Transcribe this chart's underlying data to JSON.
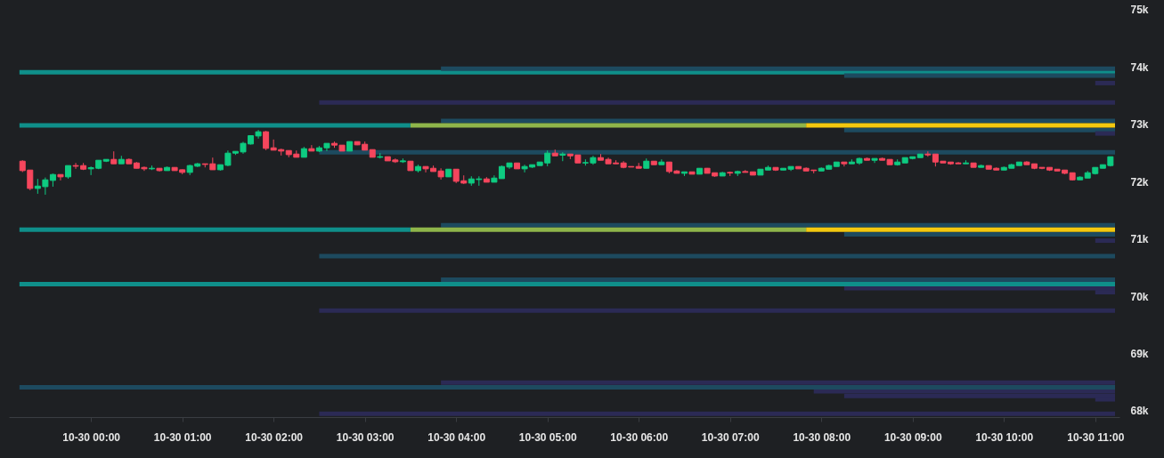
{
  "chart_data": {
    "type": "candlestick",
    "xlim": [
      "--10-29T23:09",
      "--10-30T11:13"
    ],
    "xticks": [
      {
        "value": "--10-30T00:00",
        "label": "10-30 00:00"
      },
      {
        "value": "--10-30T01:00",
        "label": "10-30 01:00"
      },
      {
        "value": "--10-30T02:00",
        "label": "10-30 02:00"
      },
      {
        "value": "--10-30T03:00",
        "label": "10-30 03:00"
      },
      {
        "value": "--10-30T04:00",
        "label": "10-30 04:00"
      },
      {
        "value": "--10-30T05:00",
        "label": "10-30 05:00"
      },
      {
        "value": "--10-30T06:00",
        "label": "10-30 06:00"
      },
      {
        "value": "--10-30T07:00",
        "label": "10-30 07:00"
      },
      {
        "value": "--10-30T08:00",
        "label": "10-30 08:00"
      },
      {
        "value": "--10-30T09:00",
        "label": "10-30 09:00"
      },
      {
        "value": "--10-30T10:00",
        "label": "10-30 10:00"
      },
      {
        "value": "--10-30T11:00",
        "label": "10-30 11:00"
      }
    ],
    "ylim": [
      67890,
      75170
    ],
    "yticks": [
      {
        "value": 68000,
        "label": "68k"
      },
      {
        "value": 69000,
        "label": "69k"
      },
      {
        "value": 70000,
        "label": "70k"
      },
      {
        "value": 71000,
        "label": "71k"
      },
      {
        "value": 72000,
        "label": "72k"
      },
      {
        "value": 73000,
        "label": "73k"
      },
      {
        "value": 74000,
        "label": "74k"
      },
      {
        "value": 75000,
        "label": "75k"
      }
    ],
    "series": [
      {
        "type": "line",
        "color": "#0f8f8a",
        "x": [
          "--10-29T23:13",
          "--10-30T11:13"
        ],
        "values": [
          73910,
          73910
        ]
      },
      {
        "type": "line",
        "color": "#1d4a5f",
        "x": [
          "--10-30T03:50",
          "--10-30T11:13"
        ],
        "values": [
          73970,
          73970
        ]
      },
      {
        "type": "line",
        "color": "#1d4a5f",
        "x": [
          "--10-30T08:15",
          "--10-30T11:13"
        ],
        "values": [
          73850,
          73850
        ]
      },
      {
        "type": "line",
        "color": "#2b2a55",
        "x": [
          "--10-30T11:00",
          "--10-30T11:13"
        ],
        "values": [
          73720,
          73720
        ]
      },
      {
        "type": "line",
        "color": "#2b2a55",
        "x": [
          "--10-30T02:30",
          "--10-30T11:13"
        ],
        "values": [
          73380,
          73380
        ]
      },
      {
        "type": "line",
        "color": "#1d4a5f",
        "x": [
          "--10-30T03:50",
          "--10-30T11:13"
        ],
        "values": [
          73060,
          73060
        ]
      },
      {
        "type": "line",
        "color": "#1d4a5f",
        "x": [
          "--10-30T08:15",
          "--10-30T11:13"
        ],
        "values": [
          72900,
          72900
        ]
      },
      {
        "type": "line",
        "color": "#2b2a55",
        "x": [
          "--10-30T11:00",
          "--10-30T11:13"
        ],
        "values": [
          72840,
          72840
        ]
      },
      {
        "type": "line",
        "color": "#0f8f8a",
        "x": [
          "--10-29T23:13",
          "--10-30T03:30"
        ],
        "values": [
          72980,
          72980
        ]
      },
      {
        "type": "line",
        "color": "#8fb54a",
        "x": [
          "--10-30T03:30",
          "--10-30T07:50"
        ],
        "values": [
          72980,
          72980
        ]
      },
      {
        "type": "line",
        "color": "#f3c80f",
        "x": [
          "--10-30T07:50",
          "--10-30T11:13"
        ],
        "values": [
          72980,
          72980
        ]
      },
      {
        "type": "line",
        "color": "#1d4a5f",
        "x": [
          "--10-30T02:30",
          "--10-30T11:13"
        ],
        "values": [
          72510,
          72510
        ]
      },
      {
        "type": "line",
        "color": "#1d4a5f",
        "x": [
          "--10-30T03:50",
          "--10-30T11:13"
        ],
        "values": [
          71240,
          71240
        ]
      },
      {
        "type": "line",
        "color": "#1d4a5f",
        "x": [
          "--10-30T08:15",
          "--10-30T11:13"
        ],
        "values": [
          71080,
          71080
        ]
      },
      {
        "type": "line",
        "color": "#2b2a55",
        "x": [
          "--10-30T11:00",
          "--10-30T11:13"
        ],
        "values": [
          70970,
          70970
        ]
      },
      {
        "type": "line",
        "color": "#0f8f8a",
        "x": [
          "--10-29T23:13",
          "--10-30T03:30"
        ],
        "values": [
          71160,
          71160
        ]
      },
      {
        "type": "line",
        "color": "#8fb54a",
        "x": [
          "--10-30T03:30",
          "--10-30T07:50"
        ],
        "values": [
          71160,
          71160
        ]
      },
      {
        "type": "line",
        "color": "#f3c80f",
        "x": [
          "--10-30T07:50",
          "--10-30T11:13"
        ],
        "values": [
          71160,
          71160
        ]
      },
      {
        "type": "line",
        "color": "#1d4a5f",
        "x": [
          "--10-30T02:30",
          "--10-30T11:13"
        ],
        "values": [
          70700,
          70700
        ]
      },
      {
        "type": "line",
        "color": "#1d4a5f",
        "x": [
          "--10-30T03:50",
          "--10-30T11:13"
        ],
        "values": [
          70290,
          70290
        ]
      },
      {
        "type": "line",
        "color": "#2b2a55",
        "x": [
          "--10-30T08:15",
          "--10-30T11:13"
        ],
        "values": [
          70140,
          70140
        ]
      },
      {
        "type": "line",
        "color": "#2b2a55",
        "x": [
          "--10-30T11:00",
          "--10-30T11:13"
        ],
        "values": [
          70070,
          70070
        ]
      },
      {
        "type": "line",
        "color": "#0f8f8a",
        "x": [
          "--10-29T23:13",
          "--10-30T11:13"
        ],
        "values": [
          70210,
          70210
        ]
      },
      {
        "type": "line",
        "color": "#2b2a55",
        "x": [
          "--10-30T02:30",
          "--10-30T11:13"
        ],
        "values": [
          69750,
          69750
        ]
      },
      {
        "type": "line",
        "color": "#2b2a55",
        "x": [
          "--10-30T03:50",
          "--10-30T11:13"
        ],
        "values": [
          68490,
          68490
        ]
      },
      {
        "type": "line",
        "color": "#2b2a55",
        "x": [
          "--10-30T07:55",
          "--10-30T11:13"
        ],
        "values": [
          68340,
          68340
        ]
      },
      {
        "type": "line",
        "color": "#2b2a55",
        "x": [
          "--10-30T08:15",
          "--10-30T11:13"
        ],
        "values": [
          68260,
          68260
        ]
      },
      {
        "type": "line",
        "color": "#2b2a55",
        "x": [
          "--10-30T11:00",
          "--10-30T11:13"
        ],
        "values": [
          68200,
          68200
        ]
      },
      {
        "type": "line",
        "color": "#1d4a5f",
        "x": [
          "--10-29T23:13",
          "--10-30T11:13"
        ],
        "values": [
          68410,
          68410
        ]
      },
      {
        "type": "line",
        "color": "#2b2a55",
        "x": [
          "--10-30T02:30",
          "--10-30T11:13"
        ],
        "values": [
          67950,
          67950
        ]
      },
      {
        "x": [
          "--10-29T23:15",
          "--10-29T23:20",
          "--10-29T23:25",
          "--10-29T23:30",
          "--10-29T23:35",
          "--10-29T23:40",
          "--10-29T23:45",
          "--10-29T23:50",
          "--10-29T23:55",
          "--10-30T00:00",
          "--10-30T00:05",
          "--10-30T00:10",
          "--10-30T00:15",
          "--10-30T00:20",
          "--10-30T00:25",
          "--10-30T00:30",
          "--10-30T00:35",
          "--10-30T00:40",
          "--10-30T00:45",
          "--10-30T00:50",
          "--10-30T00:55",
          "--10-30T01:00",
          "--10-30T01:05",
          "--10-30T01:10",
          "--10-30T01:15",
          "--10-30T01:20",
          "--10-30T01:25",
          "--10-30T01:30",
          "--10-30T01:35",
          "--10-30T01:40",
          "--10-30T01:45",
          "--10-30T01:50",
          "--10-30T01:55",
          "--10-30T02:00",
          "--10-30T02:05",
          "--10-30T02:10",
          "--10-30T02:15",
          "--10-30T02:20",
          "--10-30T02:25",
          "--10-30T02:30",
          "--10-30T02:35",
          "--10-30T02:40",
          "--10-30T02:45",
          "--10-30T02:50",
          "--10-30T02:55",
          "--10-30T03:00",
          "--10-30T03:05",
          "--10-30T03:10",
          "--10-30T03:15",
          "--10-30T03:20",
          "--10-30T03:25",
          "--10-30T03:30",
          "--10-30T03:35",
          "--10-30T03:40",
          "--10-30T03:45",
          "--10-30T03:50",
          "--10-30T03:55",
          "--10-30T04:00",
          "--10-30T04:05",
          "--10-30T04:10",
          "--10-30T04:15",
          "--10-30T04:20",
          "--10-30T04:25",
          "--10-30T04:30",
          "--10-30T04:35",
          "--10-30T04:40",
          "--10-30T04:45",
          "--10-30T04:50",
          "--10-30T04:55",
          "--10-30T05:00",
          "--10-30T05:05",
          "--10-30T05:10",
          "--10-30T05:15",
          "--10-30T05:20",
          "--10-30T05:25",
          "--10-30T05:30",
          "--10-30T05:35",
          "--10-30T05:40",
          "--10-30T05:45",
          "--10-30T05:50",
          "--10-30T05:55",
          "--10-30T06:00",
          "--10-30T06:05",
          "--10-30T06:10",
          "--10-30T06:15",
          "--10-30T06:20",
          "--10-30T06:25",
          "--10-30T06:30",
          "--10-30T06:35",
          "--10-30T06:40",
          "--10-30T06:45",
          "--10-30T06:50",
          "--10-30T06:55",
          "--10-30T07:00",
          "--10-30T07:05",
          "--10-30T07:10",
          "--10-30T07:15",
          "--10-30T07:20",
          "--10-30T07:25",
          "--10-30T07:30",
          "--10-30T07:35",
          "--10-30T07:40",
          "--10-30T07:45",
          "--10-30T07:50",
          "--10-30T07:55",
          "--10-30T08:00",
          "--10-30T08:05",
          "--10-30T08:10",
          "--10-30T08:15",
          "--10-30T08:20",
          "--10-30T08:25",
          "--10-30T08:30",
          "--10-30T08:35",
          "--10-30T08:40",
          "--10-30T08:45",
          "--10-30T08:50",
          "--10-30T08:55",
          "--10-30T09:00",
          "--10-30T09:05",
          "--10-30T09:10",
          "--10-30T09:15",
          "--10-30T09:20",
          "--10-30T09:25",
          "--10-30T09:30",
          "--10-30T09:35",
          "--10-30T09:40",
          "--10-30T09:45",
          "--10-30T09:50",
          "--10-30T09:55",
          "--10-30T10:00",
          "--10-30T10:05",
          "--10-30T10:10",
          "--10-30T10:15",
          "--10-30T10:20",
          "--10-30T10:25",
          "--10-30T10:30",
          "--10-30T10:35",
          "--10-30T10:40",
          "--10-30T10:45",
          "--10-30T10:50",
          "--10-30T10:55",
          "--10-30T11:00",
          "--10-30T11:05",
          "--10-30T11:10"
        ],
        "ohlc": [
          [
            72357,
            72373,
            72166,
            72192
          ],
          [
            72202,
            72202,
            71850,
            71881
          ],
          [
            71881,
            72047,
            71788,
            71922
          ],
          [
            71912,
            72072,
            71772,
            72031
          ],
          [
            72021,
            72140,
            71912,
            72124
          ],
          [
            72124,
            72124,
            72021,
            72083
          ],
          [
            72083,
            72280,
            72052,
            72280
          ],
          [
            72280,
            72326,
            72223,
            72269
          ],
          [
            72280,
            72326,
            72202,
            72217
          ],
          [
            72223,
            72264,
            72114,
            72243
          ],
          [
            72233,
            72373,
            72217,
            72373
          ],
          [
            72357,
            72388,
            72342,
            72388
          ],
          [
            72388,
            72528,
            72311,
            72311
          ],
          [
            72311,
            72450,
            72311,
            72388
          ],
          [
            72388,
            72404,
            72311,
            72311
          ],
          [
            72326,
            72342,
            72233,
            72233
          ],
          [
            72248,
            72264,
            72187,
            72223
          ],
          [
            72223,
            72280,
            72202,
            72233
          ],
          [
            72233,
            72233,
            72176,
            72192
          ],
          [
            72192,
            72264,
            72192,
            72248
          ],
          [
            72248,
            72248,
            72192,
            72192
          ],
          [
            72207,
            72212,
            72130,
            72161
          ],
          [
            72161,
            72295,
            72114,
            72280
          ],
          [
            72269,
            72326,
            72254,
            72311
          ],
          [
            72311,
            72311,
            72248,
            72300
          ],
          [
            72311,
            72419,
            72207,
            72207
          ],
          [
            72207,
            72295,
            72192,
            72295
          ],
          [
            72285,
            72543,
            72269,
            72497
          ],
          [
            72497,
            72528,
            72466,
            72528
          ],
          [
            72518,
            72694,
            72487,
            72668
          ],
          [
            72657,
            72802,
            72647,
            72802
          ],
          [
            72797,
            72901,
            72751,
            72870
          ],
          [
            72870,
            72885,
            72549,
            72580
          ],
          [
            72590,
            72735,
            72549,
            72549
          ],
          [
            72559,
            72575,
            72456,
            72533
          ],
          [
            72543,
            72543,
            72425,
            72471
          ],
          [
            72481,
            72543,
            72425,
            72425
          ],
          [
            72425,
            72606,
            72425,
            72575
          ],
          [
            72575,
            72637,
            72533,
            72533
          ],
          [
            72533,
            72621,
            72518,
            72590
          ],
          [
            72590,
            72668,
            72533,
            72668
          ],
          [
            72668,
            72699,
            72590,
            72637
          ],
          [
            72637,
            72637,
            72533,
            72533
          ],
          [
            72533,
            72699,
            72533,
            72699
          ],
          [
            72699,
            72699,
            72637,
            72642
          ],
          [
            72652,
            72699,
            72549,
            72549
          ],
          [
            72559,
            72559,
            72425,
            72425
          ],
          [
            72425,
            72497,
            72404,
            72435
          ],
          [
            72435,
            72435,
            72362,
            72362
          ],
          [
            72378,
            72404,
            72326,
            72347
          ],
          [
            72347,
            72404,
            72326,
            72362
          ],
          [
            72357,
            72357,
            72192,
            72192
          ],
          [
            72192,
            72295,
            72161,
            72264
          ],
          [
            72264,
            72264,
            72161,
            72223
          ],
          [
            72233,
            72280,
            72176,
            72176
          ],
          [
            72186,
            72233,
            72036,
            72083
          ],
          [
            72083,
            72217,
            72083,
            72217
          ],
          [
            72217,
            72217,
            71974,
            72005
          ],
          [
            72015,
            72109,
            71959,
            71974
          ],
          [
            71974,
            72093,
            71928,
            72047
          ],
          [
            72036,
            72093,
            71928,
            72047
          ],
          [
            72047,
            72078,
            71990,
            71990
          ],
          [
            71990,
            72109,
            71990,
            72062
          ],
          [
            72052,
            72280,
            72052,
            72264
          ],
          [
            72254,
            72326,
            72223,
            72326
          ],
          [
            72326,
            72326,
            72223,
            72223
          ],
          [
            72223,
            72295,
            72161,
            72264
          ],
          [
            72254,
            72295,
            72238,
            72295
          ],
          [
            72280,
            72342,
            72280,
            72342
          ],
          [
            72326,
            72544,
            72269,
            72497
          ],
          [
            72497,
            72559,
            72450,
            72450
          ],
          [
            72461,
            72512,
            72357,
            72481
          ],
          [
            72481,
            72481,
            72393,
            72450
          ],
          [
            72466,
            72466,
            72326,
            72326
          ],
          [
            72326,
            72388,
            72280,
            72332
          ],
          [
            72326,
            72450,
            72295,
            72419
          ],
          [
            72419,
            72481,
            72373,
            72373
          ],
          [
            72388,
            72419,
            72311,
            72311
          ],
          [
            72326,
            72373,
            72311,
            72311
          ],
          [
            72326,
            72357,
            72233,
            72249
          ],
          [
            72264,
            72264,
            72254,
            72254
          ],
          [
            72264,
            72326,
            72233,
            72233
          ],
          [
            72233,
            72404,
            72233,
            72357
          ],
          [
            72357,
            72357,
            72295,
            72295
          ],
          [
            72295,
            72388,
            72295,
            72342
          ],
          [
            72342,
            72342,
            72145,
            72176
          ],
          [
            72186,
            72202,
            72145,
            72145
          ],
          [
            72145,
            72171,
            72098,
            72171
          ],
          [
            72171,
            72171,
            72130,
            72130
          ],
          [
            72130,
            72233,
            72130,
            72233
          ],
          [
            72233,
            72238,
            72145,
            72145
          ],
          [
            72155,
            72155,
            72083,
            72098
          ],
          [
            72098,
            72171,
            72098,
            72155
          ],
          [
            72161,
            72176,
            72098,
            72150
          ],
          [
            72145,
            72192,
            72098,
            72176
          ],
          [
            72176,
            72202,
            72161,
            72161
          ],
          [
            72171,
            72171,
            72114,
            72114
          ],
          [
            72114,
            72217,
            72114,
            72217
          ],
          [
            72202,
            72280,
            72202,
            72248
          ],
          [
            72248,
            72248,
            72186,
            72202
          ],
          [
            72202,
            72233,
            72202,
            72233
          ],
          [
            72217,
            72264,
            72186,
            72264
          ],
          [
            72264,
            72264,
            72223,
            72223
          ],
          [
            72233,
            72248,
            72186,
            72186
          ],
          [
            72202,
            72202,
            72145,
            72192
          ],
          [
            72186,
            72248,
            72186,
            72233
          ],
          [
            72217,
            72295,
            72217,
            72280
          ],
          [
            72264,
            72342,
            72264,
            72342
          ],
          [
            72342,
            72342,
            72264,
            72311
          ],
          [
            72311,
            72388,
            72311,
            72342
          ],
          [
            72326,
            72419,
            72295,
            72404
          ],
          [
            72404,
            72419,
            72373,
            72373
          ],
          [
            72373,
            72404,
            72326,
            72404
          ],
          [
            72404,
            72419,
            72373,
            72373
          ],
          [
            72388,
            72388,
            72295,
            72295
          ],
          [
            72295,
            72388,
            72280,
            72342
          ],
          [
            72326,
            72419,
            72326,
            72419
          ],
          [
            72404,
            72435,
            72388,
            72435
          ],
          [
            72419,
            72481,
            72419,
            72481
          ],
          [
            72481,
            72528,
            72435,
            72466
          ],
          [
            72481,
            72481,
            72264,
            72342
          ],
          [
            72357,
            72357,
            72326,
            72326
          ],
          [
            72342,
            72342,
            72295,
            72311
          ],
          [
            72326,
            72342,
            72311,
            72311
          ],
          [
            72311,
            72373,
            72311,
            72326
          ],
          [
            72326,
            72326,
            72249,
            72249
          ],
          [
            72249,
            72295,
            72249,
            72280
          ],
          [
            72280,
            72280,
            72217,
            72217
          ],
          [
            72233,
            72248,
            72202,
            72202
          ],
          [
            72202,
            72264,
            72202,
            72248
          ],
          [
            72233,
            72311,
            72233,
            72295
          ],
          [
            72280,
            72342,
            72280,
            72342
          ],
          [
            72342,
            72357,
            72295,
            72295
          ],
          [
            72311,
            72311,
            72217,
            72233
          ],
          [
            72249,
            72249,
            72217,
            72233
          ],
          [
            72249,
            72249,
            72186,
            72202
          ],
          [
            72217,
            72217,
            72186,
            72186
          ],
          [
            72202,
            72202,
            72130,
            72145
          ],
          [
            72155,
            72155,
            72021,
            72031
          ],
          [
            72031,
            72093,
            72031,
            72078
          ],
          [
            72062,
            72186,
            72062,
            72155
          ],
          [
            72140,
            72248,
            72124,
            72248
          ],
          [
            72233,
            72295,
            72233,
            72295
          ],
          [
            72280,
            72435,
            72264,
            72435
          ]
        ],
        "colors": [
          "#f6465d",
          "#f6465d",
          "#0ecb81",
          "#0ecb81",
          "#0ecb81",
          "#f6465d",
          "#0ecb81",
          "#f6465d",
          "#f6465d",
          "#0ecb81",
          "#0ecb81",
          "#0ecb81",
          "#f6465d",
          "#0ecb81",
          "#f6465d",
          "#f6465d",
          "#f6465d",
          "#0ecb81",
          "#f6465d",
          "#0ecb81",
          "#f6465d",
          "#f6465d",
          "#0ecb81",
          "#0ecb81",
          "#f6465d",
          "#f6465d",
          "#0ecb81",
          "#0ecb81",
          "#0ecb81",
          "#0ecb81",
          "#0ecb81",
          "#0ecb81",
          "#f6465d",
          "#f6465d",
          "#f6465d",
          "#f6465d",
          "#f6465d",
          "#0ecb81",
          "#f6465d",
          "#0ecb81",
          "#0ecb81",
          "#f6465d",
          "#f6465d",
          "#0ecb81",
          "#f6465d",
          "#f6465d",
          "#f6465d",
          "#0ecb81",
          "#f6465d",
          "#f6465d",
          "#0ecb81",
          "#f6465d",
          "#0ecb81",
          "#f6465d",
          "#f6465d",
          "#f6465d",
          "#0ecb81",
          "#f6465d",
          "#f6465d",
          "#0ecb81",
          "#0ecb81",
          "#f6465d",
          "#0ecb81",
          "#0ecb81",
          "#0ecb81",
          "#f6465d",
          "#0ecb81",
          "#0ecb81",
          "#0ecb81",
          "#0ecb81",
          "#f6465d",
          "#0ecb81",
          "#f6465d",
          "#f6465d",
          "#0ecb81",
          "#0ecb81",
          "#f6465d",
          "#f6465d",
          "#f6465d",
          "#f6465d",
          "#f6465d",
          "#f6465d",
          "#0ecb81",
          "#f6465d",
          "#0ecb81",
          "#f6465d",
          "#f6465d",
          "#0ecb81",
          "#f6465d",
          "#0ecb81",
          "#f6465d",
          "#f6465d",
          "#0ecb81",
          "#f6465d",
          "#0ecb81",
          "#f6465d",
          "#f6465d",
          "#0ecb81",
          "#0ecb81",
          "#f6465d",
          "#0ecb81",
          "#0ecb81",
          "#f6465d",
          "#f6465d",
          "#f6465d",
          "#0ecb81",
          "#0ecb81",
          "#0ecb81",
          "#f6465d",
          "#0ecb81",
          "#0ecb81",
          "#f6465d",
          "#0ecb81",
          "#f6465d",
          "#f6465d",
          "#0ecb81",
          "#0ecb81",
          "#0ecb81",
          "#0ecb81",
          "#f6465d",
          "#f6465d",
          "#f6465d",
          "#f6465d",
          "#f6465d",
          "#0ecb81",
          "#f6465d",
          "#0ecb81",
          "#f6465d",
          "#f6465d",
          "#0ecb81",
          "#0ecb81",
          "#0ecb81",
          "#f6465d",
          "#f6465d",
          "#f6465d",
          "#f6465d",
          "#f6465d",
          "#f6465d",
          "#f6465d",
          "#0ecb81",
          "#0ecb81",
          "#0ecb81",
          "#0ecb81",
          "#0ecb81"
        ]
      }
    ]
  }
}
